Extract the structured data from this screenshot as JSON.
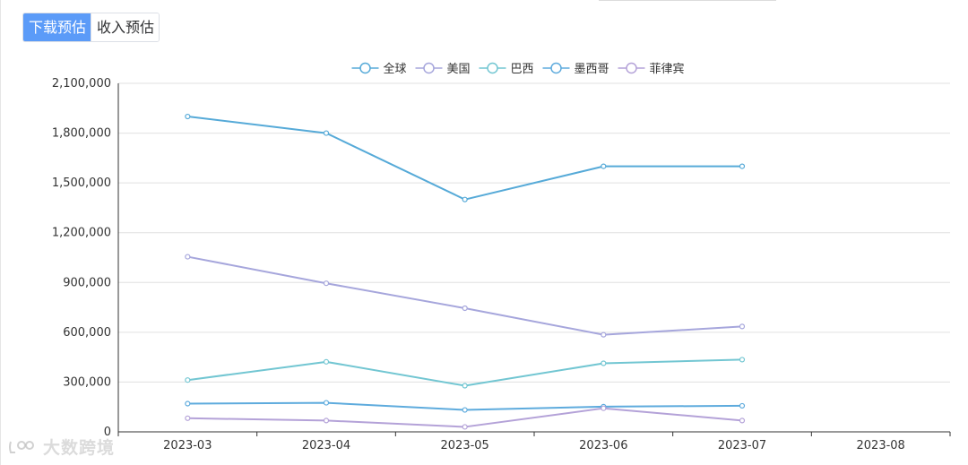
{
  "tabs": [
    {
      "label": "下载预估",
      "active": true
    },
    {
      "label": "收入预估",
      "active": false
    }
  ],
  "watermark": "大数跨境",
  "colors": {
    "accent": "#5b9bf8",
    "axis": "#333333",
    "grid": "#e0e0e0"
  },
  "chart_data": {
    "type": "line",
    "categories": [
      "2023-03",
      "2023-04",
      "2023-05",
      "2023-06",
      "2023-07",
      "2023-08"
    ],
    "ylim": [
      0,
      2100000
    ],
    "yticks": [
      0,
      300000,
      600000,
      900000,
      1200000,
      1500000,
      1800000,
      2100000
    ],
    "ytick_labels": [
      "0",
      "300,000",
      "600,000",
      "900,000",
      "1,200,000",
      "1,500,000",
      "1,800,000",
      "2,100,000"
    ],
    "grid": true,
    "legend_position": "top-center",
    "series": [
      {
        "name": "全球",
        "color": "#56aad8",
        "values": [
          1900000,
          1800000,
          1400000,
          1600000,
          1600000,
          null
        ]
      },
      {
        "name": "美国",
        "color": "#a6a6dc",
        "values": [
          1055000,
          895000,
          745000,
          585000,
          635000,
          null
        ]
      },
      {
        "name": "巴西",
        "color": "#72c6d2",
        "values": [
          312000,
          422000,
          278000,
          413000,
          435000,
          null
        ]
      },
      {
        "name": "墨西哥",
        "color": "#5eabdd",
        "values": [
          170000,
          175000,
          132000,
          152000,
          157000,
          null
        ]
      },
      {
        "name": "菲律宾",
        "color": "#b4a2d8",
        "values": [
          82000,
          68000,
          30000,
          142000,
          68000,
          null
        ]
      }
    ]
  }
}
